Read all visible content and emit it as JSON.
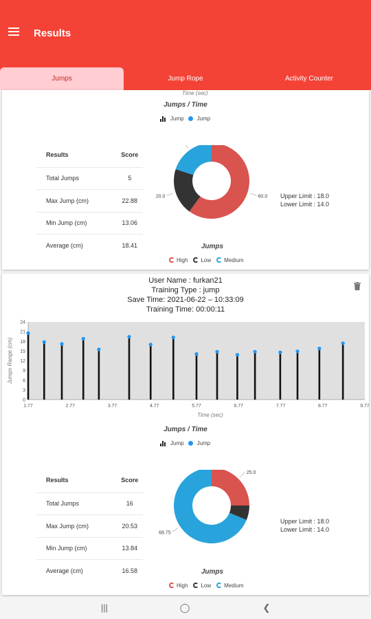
{
  "app": {
    "title": "Results"
  },
  "tabs": [
    {
      "label": "Jumps"
    },
    {
      "label": "Jump Rope"
    },
    {
      "label": "Activity Counter"
    }
  ],
  "card1": {
    "axis_label_top": "Time (sec)",
    "chart_title": "Jumps / Time",
    "legend_bar": "Jump",
    "legend_dot": "Jump",
    "table": {
      "header_results": "Results",
      "header_score": "Score",
      "rows": [
        {
          "label": "Total Jumps",
          "value": "5"
        },
        {
          "label": "Max Jump (cm)",
          "value": "22.88"
        },
        {
          "label": "Min Jump (cm)",
          "value": "13.06"
        },
        {
          "label": "Average (cm)",
          "value": "18.41"
        }
      ]
    },
    "limits": {
      "upper": "Upper Limit : 18.0",
      "lower": "Lower Limit : 14.0"
    },
    "pie_title": "Jumps",
    "pie_legend": [
      "High",
      "Low",
      "Medium"
    ],
    "slice_labels": {
      "blue": "20.0",
      "dark": "20.0",
      "red": "60.0"
    }
  },
  "card2": {
    "user": "User Name : furkan21",
    "training_type": "Training Type : jump",
    "save_time": "Save Time: 2021-06-22 – 10:33:09",
    "training_time": "Training Time: 00:00:11",
    "chart_title": "Jumps / Time",
    "legend_bar": "Jump",
    "legend_dot": "Jump",
    "table": {
      "header_results": "Results",
      "header_score": "Score",
      "rows": [
        {
          "label": "Total Jumps",
          "value": "16"
        },
        {
          "label": "Max Jump (cm)",
          "value": "20.53"
        },
        {
          "label": "Min Jump (cm)",
          "value": "13.84"
        },
        {
          "label": "Average (cm)",
          "value": "16.58"
        }
      ]
    },
    "limits": {
      "upper": "Upper Limit : 18.0",
      "lower": "Lower Limit : 14.0"
    },
    "pie_title": "Jumps",
    "pie_legend": [
      "High",
      "Low",
      "Medium"
    ],
    "slice_labels": {
      "red": "25.0",
      "blue": "68.75"
    }
  },
  "colors": {
    "primary": "#f44336",
    "high": "#d9534f",
    "low": "#333333",
    "medium": "#29a3dc",
    "point": "#2196f3"
  },
  "chart_data": [
    {
      "type": "pie",
      "title": "Jumps",
      "categories": [
        "High",
        "Low",
        "Medium"
      ],
      "values": [
        60.0,
        20.0,
        20.0
      ]
    },
    {
      "type": "bar",
      "title": "Jumps / Time",
      "xlabel": "Time (sec)",
      "ylabel": "Jumps Range (cm)",
      "ylim": [
        0,
        24
      ],
      "yticks": [
        0,
        3,
        6,
        9,
        12,
        15,
        18,
        21,
        24
      ],
      "xtick_labels": [
        "1.77",
        "2.77",
        "3.77",
        "4.77",
        "5.77",
        "6.77",
        "7.77",
        "8.77",
        "9.77"
      ],
      "x": [
        1.77,
        2.15,
        2.57,
        3.08,
        3.45,
        4.17,
        4.68,
        5.22,
        5.77,
        6.26,
        6.74,
        7.16,
        7.76,
        8.17,
        8.69,
        9.25
      ],
      "series": [
        {
          "name": "Jump",
          "values": [
            20.53,
            17.8,
            17.2,
            18.8,
            15.5,
            19.4,
            17.0,
            19.2,
            14.1,
            14.8,
            13.84,
            14.8,
            14.6,
            14.9,
            15.8,
            17.4
          ]
        }
      ],
      "grid": false
    },
    {
      "type": "pie",
      "title": "Jumps",
      "categories": [
        "High",
        "Low",
        "Medium"
      ],
      "values": [
        25.0,
        6.25,
        68.75
      ]
    }
  ]
}
